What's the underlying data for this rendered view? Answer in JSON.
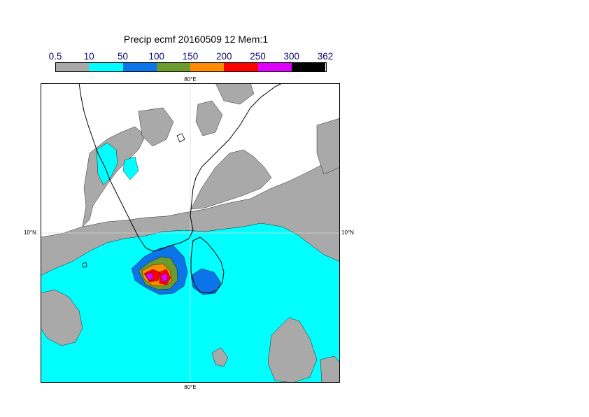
{
  "title": "Precip ecmf 20160509 12 Mem:1",
  "legend": {
    "labels": [
      "0.5",
      "10",
      "50",
      "100",
      "150",
      "200",
      "250",
      "300",
      "362"
    ],
    "colors": [
      "#a9a9a9",
      "#00ffff",
      "#0a74e8",
      "#6b9a2f",
      "#ff8c00",
      "#ff0000",
      "#e000ff",
      "#000000"
    ]
  },
  "axes": {
    "lon_label_top": "80°E",
    "lon_label_bottom": "80°E",
    "lat_label_left": "10°N",
    "lat_label_right": "10°N"
  },
  "colors": {
    "land_low": "#a9a9a9",
    "rain_10": "#00ffff",
    "rain_50": "#0a74e8",
    "rain_100": "#6b9a2f",
    "rain_150": "#ff8c00",
    "rain_200": "#ff0000",
    "rain_250": "#e000ff",
    "coast": "#000000",
    "grid": "#d9d9d9"
  }
}
